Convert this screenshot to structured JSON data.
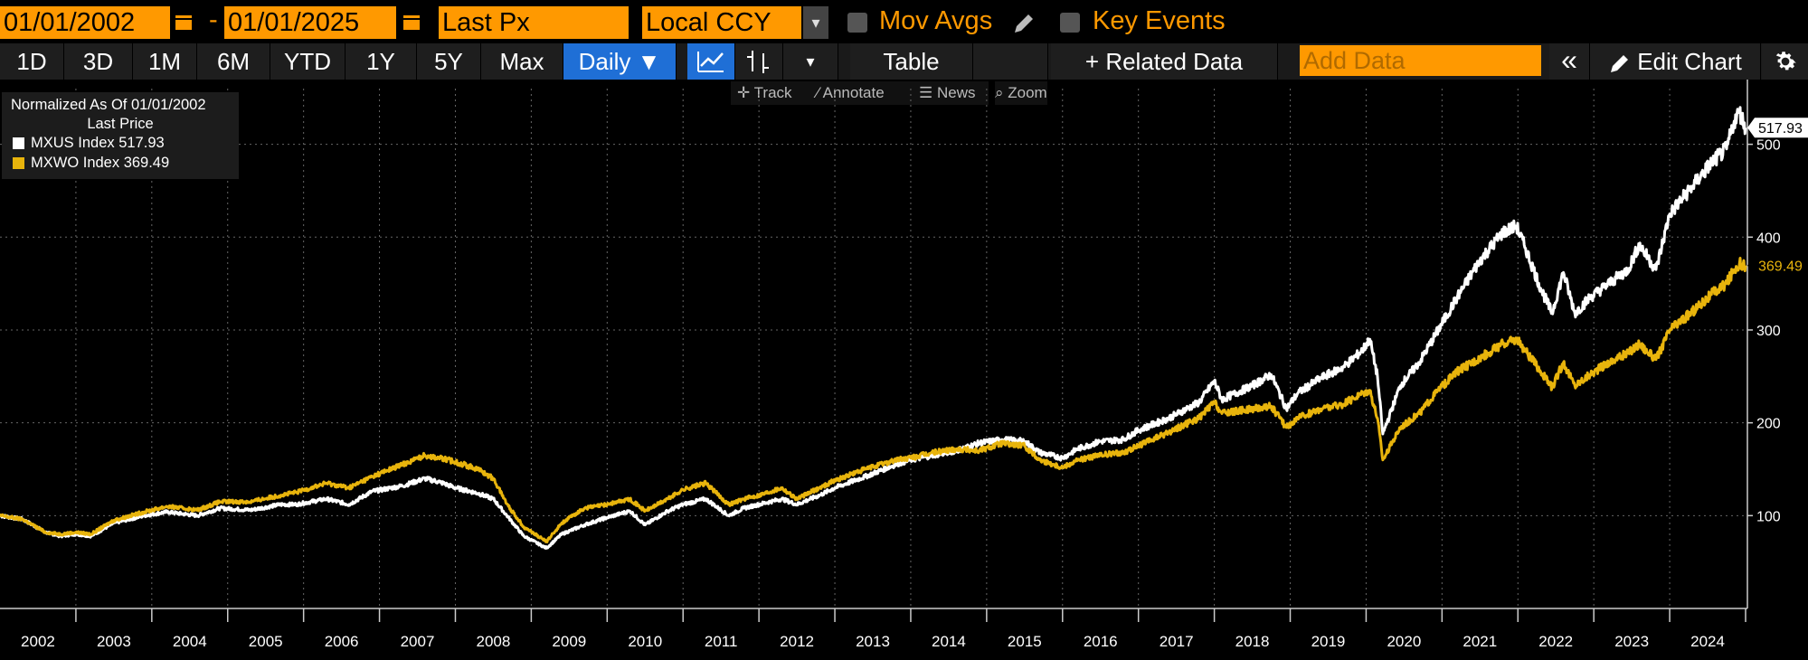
{
  "header": {
    "start_date": "01/01/2002",
    "end_date": "01/01/2025",
    "date_separator": "-",
    "field": "Last Px",
    "currency": "Local CCY",
    "mov_avgs_label": "Mov Avgs",
    "key_events_label": "Key Events"
  },
  "toolbar": {
    "periods": [
      "1D",
      "3D",
      "1M",
      "6M",
      "YTD",
      "1Y",
      "5Y",
      "Max"
    ],
    "frequency": "Daily ▼",
    "table_label": "Table",
    "related_data_label": "+ Related Data",
    "add_data_placeholder": "Add Data",
    "collapse_label": "«",
    "edit_chart_label": "Edit Chart"
  },
  "subtools": {
    "track": "Track",
    "annotate": "Annotate",
    "news": "News",
    "zoom": "Zoom"
  },
  "legend": {
    "heading": "Normalized As Of 01/01/2002",
    "subheading": "Last Price",
    "entries": [
      {
        "label": "MXUS Index 517.93",
        "color": "#ffffff"
      },
      {
        "label": "MXWO Index 369.49",
        "color": "#e8b40c"
      }
    ]
  },
  "colors": {
    "accent": "#ff9900",
    "active_button": "#1f6fd6",
    "series_1": "#ffffff",
    "series_2": "#e8b40c"
  },
  "chart_data": {
    "type": "line",
    "title": "",
    "xlabel": "",
    "ylabel": "",
    "x_tick_labels": [
      "2002",
      "2003",
      "2004",
      "2005",
      "2006",
      "2007",
      "2008",
      "2009",
      "2010",
      "2011",
      "2012",
      "2013",
      "2014",
      "2015",
      "2016",
      "2017",
      "2018",
      "2019",
      "2020",
      "2021",
      "2022",
      "2023",
      "2024"
    ],
    "y_tick_labels": [
      "100",
      "200",
      "300",
      "400",
      "500"
    ],
    "ylim": [
      0,
      560
    ],
    "xlim": [
      2002.0,
      2025.0
    ],
    "grid": true,
    "series": [
      {
        "name": "MXUS Index",
        "color": "#ffffff",
        "last_value_label": "517.93",
        "points": [
          [
            2002.0,
            100
          ],
          [
            2002.3,
            96
          ],
          [
            2002.6,
            82
          ],
          [
            2002.8,
            78
          ],
          [
            2003.0,
            80
          ],
          [
            2003.2,
            78
          ],
          [
            2003.5,
            92
          ],
          [
            2003.9,
            100
          ],
          [
            2004.2,
            104
          ],
          [
            2004.6,
            100
          ],
          [
            2004.9,
            108
          ],
          [
            2005.3,
            106
          ],
          [
            2005.7,
            112
          ],
          [
            2005.9,
            112
          ],
          [
            2006.3,
            118
          ],
          [
            2006.6,
            112
          ],
          [
            2006.9,
            126
          ],
          [
            2007.3,
            132
          ],
          [
            2007.6,
            140
          ],
          [
            2007.8,
            136
          ],
          [
            2008.0,
            130
          ],
          [
            2008.3,
            124
          ],
          [
            2008.5,
            118
          ],
          [
            2008.7,
            98
          ],
          [
            2008.9,
            78
          ],
          [
            2009.2,
            65
          ],
          [
            2009.4,
            80
          ],
          [
            2009.7,
            90
          ],
          [
            2010.0,
            98
          ],
          [
            2010.3,
            105
          ],
          [
            2010.5,
            90
          ],
          [
            2010.8,
            105
          ],
          [
            2011.0,
            112
          ],
          [
            2011.3,
            118
          ],
          [
            2011.6,
            100
          ],
          [
            2011.8,
            108
          ],
          [
            2012.0,
            112
          ],
          [
            2012.3,
            118
          ],
          [
            2012.5,
            112
          ],
          [
            2012.8,
            122
          ],
          [
            2013.0,
            130
          ],
          [
            2013.4,
            142
          ],
          [
            2013.8,
            155
          ],
          [
            2014.0,
            160
          ],
          [
            2014.3,
            165
          ],
          [
            2014.6,
            170
          ],
          [
            2014.9,
            178
          ],
          [
            2015.2,
            182
          ],
          [
            2015.5,
            180
          ],
          [
            2015.7,
            168
          ],
          [
            2016.0,
            162
          ],
          [
            2016.2,
            172
          ],
          [
            2016.5,
            180
          ],
          [
            2016.8,
            182
          ],
          [
            2017.0,
            192
          ],
          [
            2017.4,
            205
          ],
          [
            2017.8,
            222
          ],
          [
            2018.0,
            245
          ],
          [
            2018.1,
            225
          ],
          [
            2018.5,
            240
          ],
          [
            2018.75,
            252
          ],
          [
            2018.95,
            215
          ],
          [
            2019.1,
            232
          ],
          [
            2019.4,
            248
          ],
          [
            2019.7,
            260
          ],
          [
            2019.95,
            278
          ],
          [
            2020.05,
            290
          ],
          [
            2020.15,
            250
          ],
          [
            2020.22,
            188
          ],
          [
            2020.45,
            240
          ],
          [
            2020.7,
            265
          ],
          [
            2020.95,
            300
          ],
          [
            2021.2,
            335
          ],
          [
            2021.5,
            375
          ],
          [
            2021.8,
            405
          ],
          [
            2021.98,
            412
          ],
          [
            2022.1,
            388
          ],
          [
            2022.3,
            345
          ],
          [
            2022.45,
            318
          ],
          [
            2022.6,
            362
          ],
          [
            2022.75,
            318
          ],
          [
            2022.95,
            335
          ],
          [
            2023.2,
            350
          ],
          [
            2023.45,
            365
          ],
          [
            2023.6,
            392
          ],
          [
            2023.82,
            365
          ],
          [
            2024.0,
            425
          ],
          [
            2024.3,
            455
          ],
          [
            2024.55,
            480
          ],
          [
            2024.75,
            495
          ],
          [
            2024.85,
            525
          ],
          [
            2024.92,
            535
          ],
          [
            2025.0,
            517.93
          ]
        ]
      },
      {
        "name": "MXWO Index",
        "color": "#e8b40c",
        "last_value_label": "369.49",
        "points": [
          [
            2002.0,
            100
          ],
          [
            2002.3,
            96
          ],
          [
            2002.6,
            82
          ],
          [
            2002.8,
            80
          ],
          [
            2003.0,
            82
          ],
          [
            2003.2,
            80
          ],
          [
            2003.5,
            95
          ],
          [
            2003.9,
            104
          ],
          [
            2004.2,
            110
          ],
          [
            2004.6,
            106
          ],
          [
            2004.9,
            115
          ],
          [
            2005.3,
            115
          ],
          [
            2005.7,
            122
          ],
          [
            2005.9,
            125
          ],
          [
            2006.3,
            135
          ],
          [
            2006.6,
            130
          ],
          [
            2006.9,
            142
          ],
          [
            2007.3,
            155
          ],
          [
            2007.6,
            165
          ],
          [
            2007.8,
            162
          ],
          [
            2008.0,
            158
          ],
          [
            2008.3,
            150
          ],
          [
            2008.5,
            140
          ],
          [
            2008.7,
            110
          ],
          [
            2008.9,
            88
          ],
          [
            2009.2,
            72
          ],
          [
            2009.4,
            92
          ],
          [
            2009.7,
            108
          ],
          [
            2010.0,
            112
          ],
          [
            2010.3,
            118
          ],
          [
            2010.5,
            105
          ],
          [
            2010.8,
            118
          ],
          [
            2011.0,
            128
          ],
          [
            2011.3,
            135
          ],
          [
            2011.6,
            112
          ],
          [
            2011.8,
            118
          ],
          [
            2012.0,
            122
          ],
          [
            2012.3,
            130
          ],
          [
            2012.5,
            118
          ],
          [
            2012.8,
            130
          ],
          [
            2013.0,
            138
          ],
          [
            2013.4,
            150
          ],
          [
            2013.8,
            160
          ],
          [
            2014.0,
            162
          ],
          [
            2014.3,
            168
          ],
          [
            2014.6,
            172
          ],
          [
            2014.9,
            170
          ],
          [
            2015.2,
            178
          ],
          [
            2015.5,
            175
          ],
          [
            2015.7,
            160
          ],
          [
            2016.0,
            152
          ],
          [
            2016.2,
            160
          ],
          [
            2016.5,
            165
          ],
          [
            2016.8,
            168
          ],
          [
            2017.0,
            175
          ],
          [
            2017.4,
            190
          ],
          [
            2017.8,
            205
          ],
          [
            2018.0,
            222
          ],
          [
            2018.1,
            210
          ],
          [
            2018.5,
            215
          ],
          [
            2018.75,
            218
          ],
          [
            2018.95,
            195
          ],
          [
            2019.1,
            205
          ],
          [
            2019.4,
            215
          ],
          [
            2019.7,
            220
          ],
          [
            2019.95,
            232
          ],
          [
            2020.05,
            235
          ],
          [
            2020.15,
            205
          ],
          [
            2020.22,
            160
          ],
          [
            2020.45,
            195
          ],
          [
            2020.7,
            210
          ],
          [
            2020.95,
            235
          ],
          [
            2021.2,
            255
          ],
          [
            2021.5,
            270
          ],
          [
            2021.8,
            285
          ],
          [
            2021.98,
            290
          ],
          [
            2022.1,
            278
          ],
          [
            2022.3,
            255
          ],
          [
            2022.45,
            238
          ],
          [
            2022.6,
            265
          ],
          [
            2022.75,
            240
          ],
          [
            2022.95,
            252
          ],
          [
            2023.2,
            265
          ],
          [
            2023.45,
            275
          ],
          [
            2023.6,
            285
          ],
          [
            2023.82,
            268
          ],
          [
            2024.0,
            300
          ],
          [
            2024.3,
            320
          ],
          [
            2024.55,
            338
          ],
          [
            2024.75,
            350
          ],
          [
            2024.85,
            365
          ],
          [
            2024.92,
            372
          ],
          [
            2025.0,
            369.49
          ]
        ]
      }
    ]
  }
}
